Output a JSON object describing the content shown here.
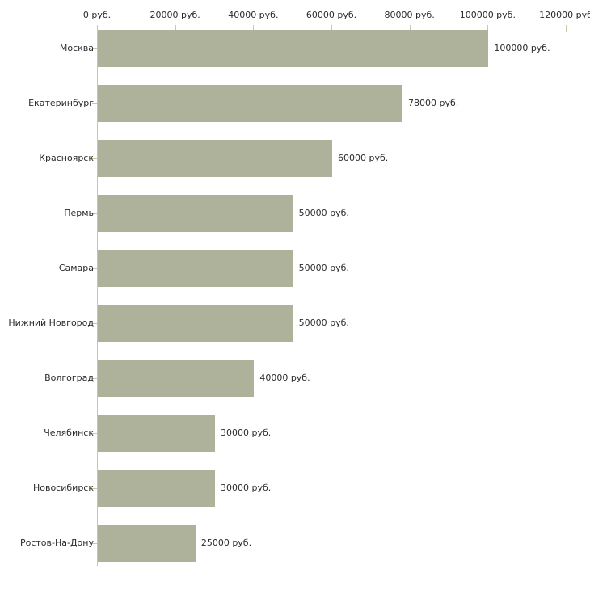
{
  "chart_data": {
    "type": "bar",
    "orientation": "horizontal",
    "title": "",
    "xlabel": "",
    "ylabel": "",
    "xlim": [
      0,
      120000
    ],
    "grid": false,
    "legend": null,
    "categories": [
      "Москва",
      "Екатеринбург",
      "Красноярск",
      "Пермь",
      "Самара",
      "Нижний Новгород",
      "Волгоград",
      "Челябинск",
      "Новосибирск",
      "Ростов-На-Дону"
    ],
    "values": [
      100000,
      78000,
      60000,
      50000,
      50000,
      50000,
      40000,
      30000,
      30000,
      25000
    ],
    "value_labels": [
      "100000 руб.",
      "78000 руб.",
      "60000 руб.",
      "50000 руб.",
      "50000 руб.",
      "50000 руб.",
      "40000 руб.",
      "30000 руб.",
      "30000 руб.",
      "25000 руб."
    ],
    "x_tick_values": [
      0,
      20000,
      40000,
      60000,
      80000,
      100000,
      120000
    ],
    "x_tick_labels": [
      "0 руб.",
      "20000 руб.",
      "40000 руб.",
      "60000 руб.",
      "80000 руб.",
      "100000 руб.",
      "120000 руб"
    ],
    "colors": {
      "bar": "#aeb29a",
      "axis": "#c3c3c3",
      "tick": "#c9c9a3",
      "text": "#2b2b2b",
      "background": "#ffffff"
    }
  }
}
